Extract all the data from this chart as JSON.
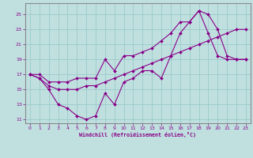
{
  "xlabel": "Windchill (Refroidissement éolien,°C)",
  "bg_color": "#c0e0e0",
  "grid_color": "#a0cccc",
  "line_color": "#880088",
  "spine_color": "#888888",
  "xlim": [
    -0.5,
    23.5
  ],
  "ylim": [
    10.5,
    26.5
  ],
  "xticks": [
    0,
    1,
    2,
    3,
    4,
    5,
    6,
    7,
    8,
    9,
    10,
    11,
    12,
    13,
    14,
    15,
    16,
    17,
    18,
    19,
    20,
    21,
    22,
    23
  ],
  "yticks": [
    11,
    13,
    15,
    17,
    19,
    21,
    23,
    25
  ],
  "line1_x": [
    0,
    1,
    2,
    3,
    4,
    5,
    6,
    7,
    8,
    9,
    10,
    11,
    12,
    13,
    14,
    15,
    16,
    17,
    18,
    19,
    20,
    21,
    22,
    23
  ],
  "line1_y": [
    17,
    16.5,
    15,
    13,
    12.5,
    11.5,
    11,
    11.5,
    14.5,
    13,
    16,
    16.5,
    17.5,
    17.5,
    16.5,
    19.5,
    22.5,
    24.0,
    25.5,
    22.5,
    19.5,
    19.0,
    19.0,
    19.0
  ],
  "line2_x": [
    0,
    1,
    2,
    3,
    4,
    5,
    6,
    7,
    8,
    9,
    10,
    11,
    12,
    13,
    14,
    15,
    16,
    17,
    18,
    19,
    20,
    21,
    22,
    23
  ],
  "line2_y": [
    17.0,
    16.5,
    15.5,
    15.0,
    15.0,
    15.0,
    15.5,
    15.5,
    16.0,
    16.5,
    17.0,
    17.5,
    18.0,
    18.5,
    19.0,
    19.5,
    20.0,
    20.5,
    21.0,
    21.5,
    22.0,
    22.5,
    23.0,
    23.0
  ],
  "line3_x": [
    0,
    1,
    2,
    3,
    4,
    5,
    6,
    7,
    8,
    9,
    10,
    11,
    12,
    13,
    14,
    15,
    16,
    17,
    18,
    19,
    20,
    21,
    22,
    23
  ],
  "line3_y": [
    17.0,
    17.0,
    16.0,
    16.0,
    16.0,
    16.5,
    16.5,
    16.5,
    19.0,
    17.5,
    19.5,
    19.5,
    20.0,
    20.5,
    21.5,
    22.5,
    24.0,
    24.0,
    25.5,
    25.0,
    23.0,
    19.5,
    19.0,
    19.0
  ]
}
